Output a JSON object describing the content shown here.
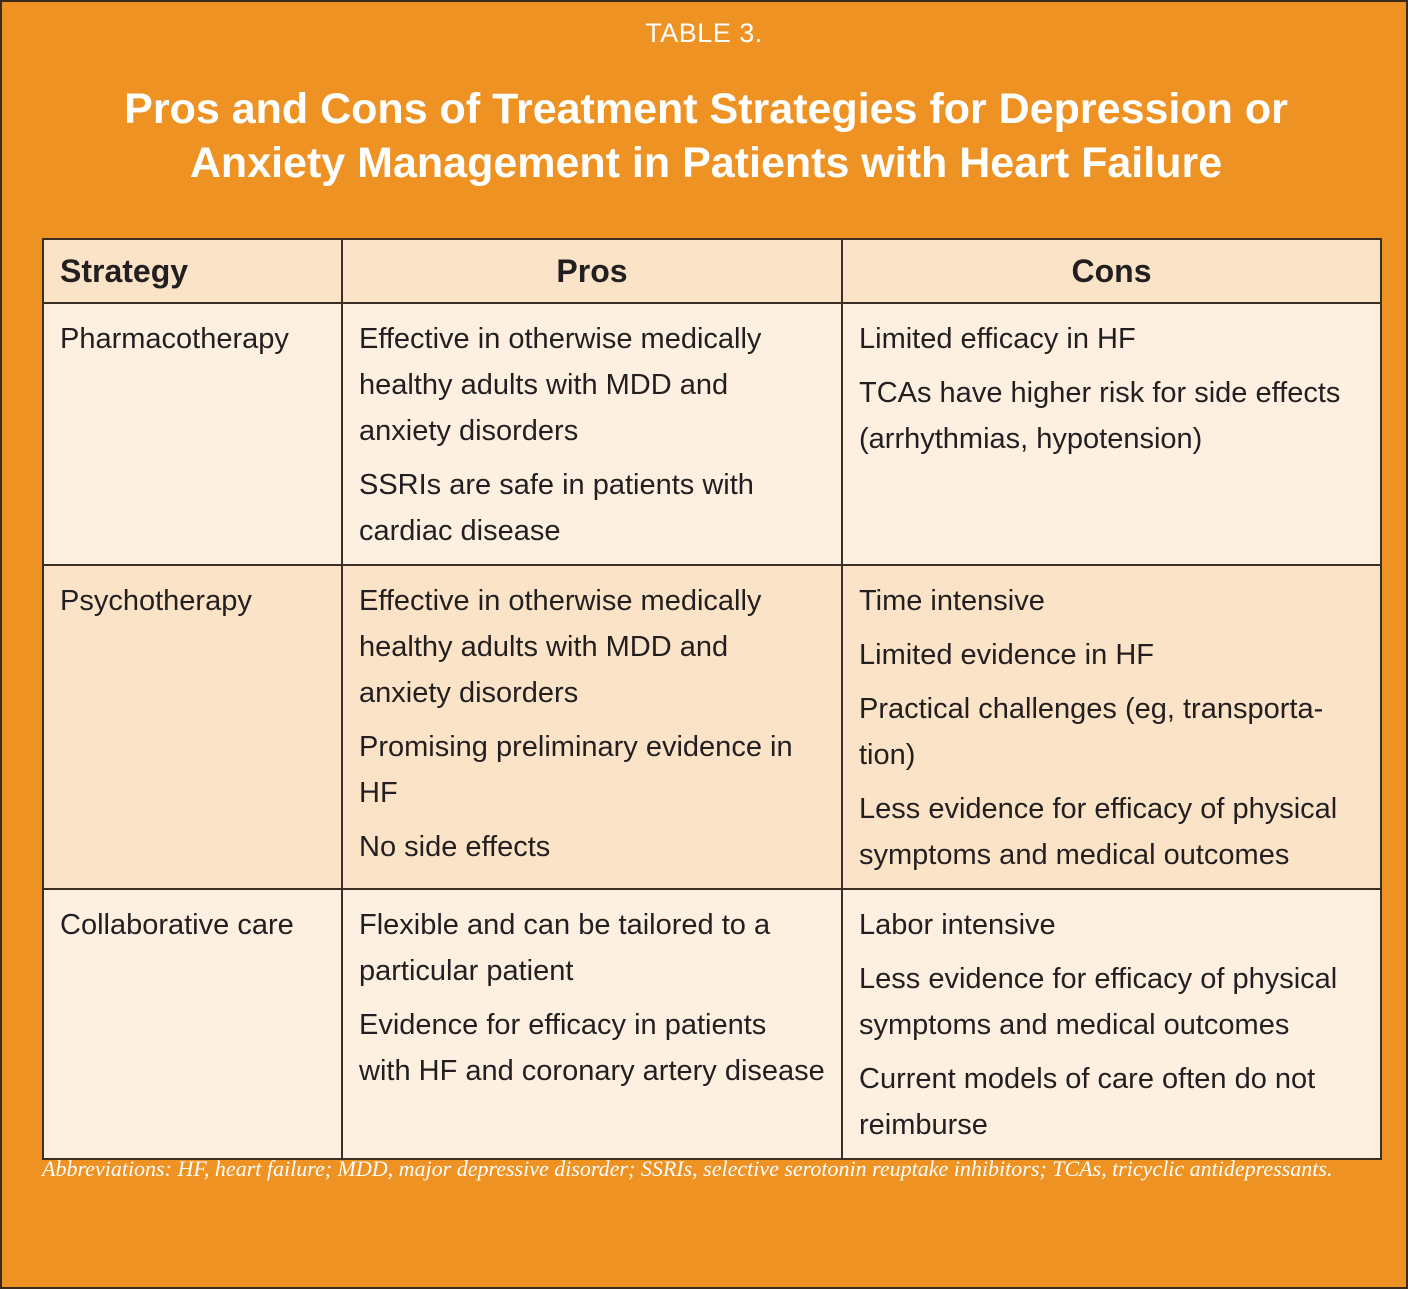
{
  "table_number": "TABLE 3.",
  "title_line1": "Pros and Cons of Treatment Strategies for Depression or",
  "title_line2": "Anxiety Management in Patients with Heart Failure",
  "headers": {
    "strategy": "Strategy",
    "pros": "Pros",
    "cons": "Cons"
  },
  "rows": [
    {
      "strategy": "Pharmacotherapy",
      "pros": [
        "Effective in otherwise medically healthy adults with MDD and anxiety disorders",
        "SSRIs are safe in patients with cardiac disease"
      ],
      "cons": [
        "Limited efficacy in HF",
        "TCAs have higher risk for side effects (arrhythmias, hypotension)"
      ]
    },
    {
      "strategy": "Psychotherapy",
      "pros": [
        "Effective in otherwise medically healthy adults with MDD and anxiety disorders",
        "Promising preliminary evidence in HF",
        "No side effects"
      ],
      "cons": [
        "Time intensive",
        "Limited evidence in HF",
        "Practical challenges (eg, transporta-tion)",
        "Less evidence for efficacy of physical symptoms and medical outcomes"
      ]
    },
    {
      "strategy": "Collaborative care",
      "pros": [
        "Flexible and can be tailored to a particular patient",
        "Evidence for efficacy in patients with HF and coronary artery disease"
      ],
      "cons": [
        "Labor intensive",
        "Less evidence for efficacy of physical symptoms and medical outcomes",
        "Current models of care often do not reimburse"
      ]
    }
  ],
  "footnote": "Abbreviations: HF, heart failure; MDD, major depressive disorder; SSRIs, selective serotonin reuptake inhibitors; TCAs, tricyclic antidepressants.",
  "colors": {
    "panel": "#ee9223",
    "header_fill": "#fbe3c7",
    "row_light": "#fdf0e1",
    "row_dark": "#fbe3c7",
    "border": "#3a2e25"
  }
}
